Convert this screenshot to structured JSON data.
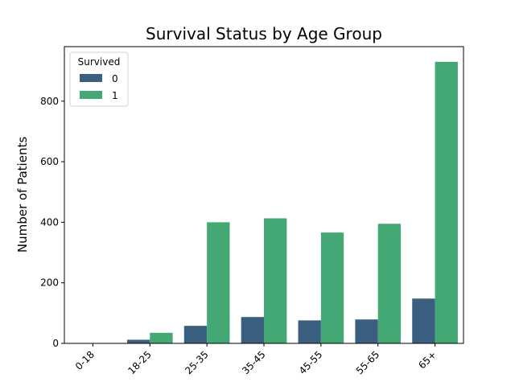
{
  "chart_data": {
    "type": "bar",
    "title": "Survival Status by Age Group",
    "xlabel": "",
    "ylabel": "Number of Patients",
    "categories": [
      "0-18",
      "18-25",
      "25-35",
      "35-45",
      "45-55",
      "55-65",
      "65+"
    ],
    "series": [
      {
        "name": "0",
        "color": "#3b5f80",
        "values": [
          0,
          12,
          58,
          87,
          76,
          79,
          148
        ]
      },
      {
        "name": "1",
        "color": "#43a873",
        "values": [
          0,
          35,
          400,
          413,
          366,
          395,
          930
        ]
      }
    ],
    "ylim": [
      0,
      980
    ],
    "yticks": [
      0,
      200,
      400,
      600,
      800
    ],
    "x_tick_rotation": 45,
    "grid": false,
    "legend": {
      "title": "Survived",
      "placement": "top-left"
    }
  }
}
